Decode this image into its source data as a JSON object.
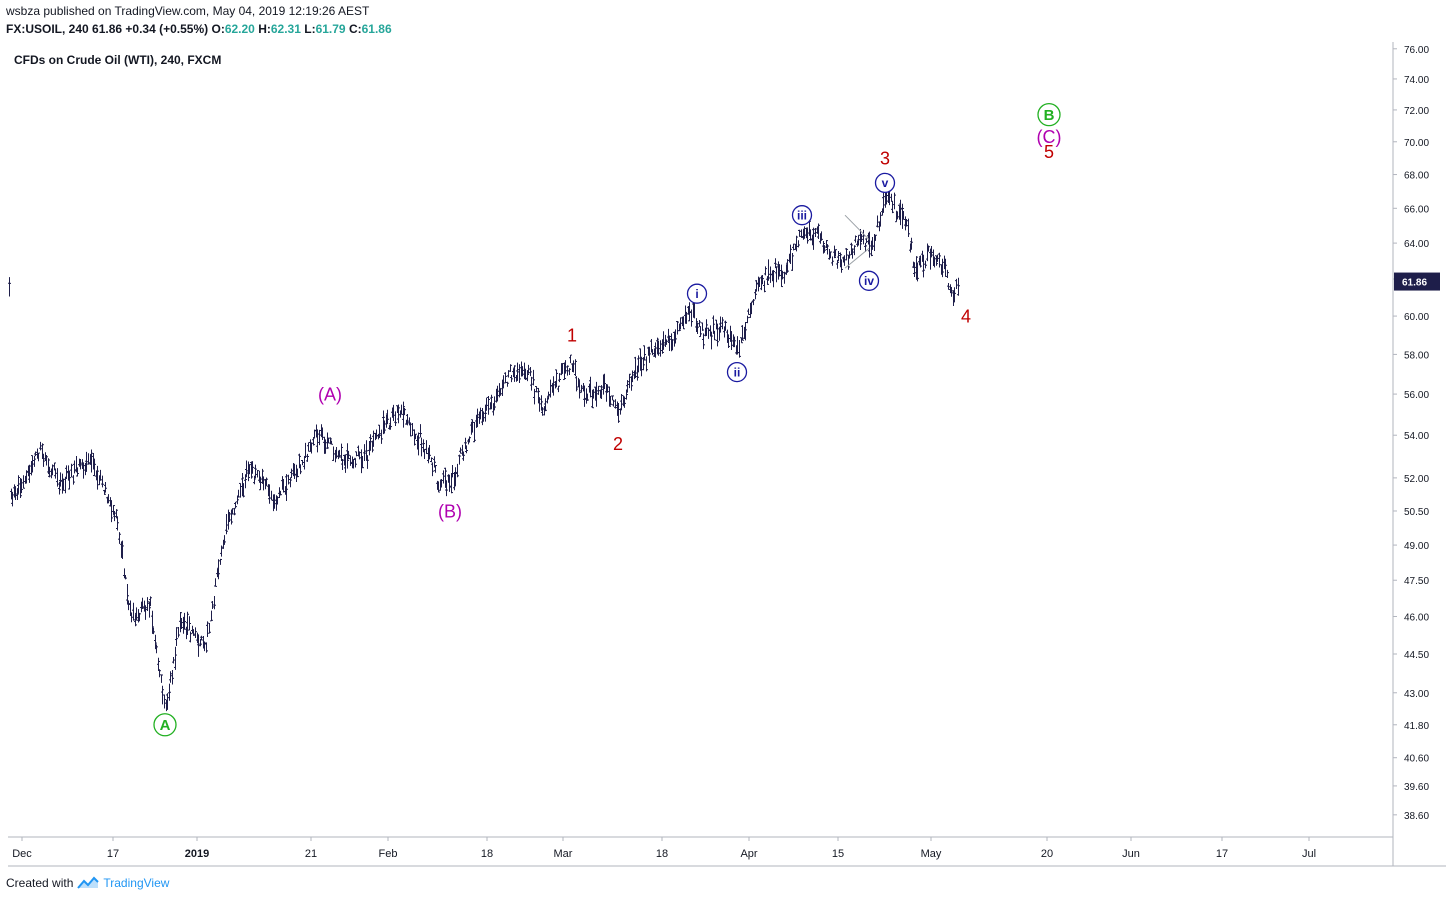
{
  "header": {
    "line1": "wsbza published on TradingView.com, May 04, 2019 12:19:26 AEST",
    "symbol": "FX:USOIL, 240",
    "last": "61.86",
    "change": "+0.34 (+0.55%)",
    "o_label": "O:",
    "o_val": "62.20",
    "h_label": "H:",
    "h_val": "62.31",
    "l_label": "L:",
    "l_val": "61.79",
    "c_label": "C:",
    "c_val": "61.86"
  },
  "footer": {
    "created_with": "Created with",
    "brand": "TradingView"
  },
  "colors": {
    "candle": "#1e1e4a",
    "wave_red": "#c00000",
    "wave_purple": "#b000b0",
    "wave_green": "#22b022",
    "wave_blue": "#1a1aa0",
    "price_tag_bg": "#1e1e4a"
  },
  "chart_data": {
    "type": "line",
    "subtype": "ohlc-bars",
    "title": "CFDs on Crude Oil (WTI), 240, FXCM",
    "y_axis_labels": [
      "76.00",
      "74.00",
      "72.00",
      "70.00",
      "68.00",
      "66.00",
      "64.00",
      "62.00",
      "60.00",
      "58.00",
      "56.00",
      "54.00",
      "52.00",
      "50.50",
      "49.00",
      "47.50",
      "46.00",
      "44.50",
      "43.00",
      "41.80",
      "40.60",
      "39.60",
      "38.60"
    ],
    "x_axis_labels": [
      "Dec",
      "17",
      "2019",
      "21",
      "Feb",
      "18",
      "Mar",
      "18",
      "Apr",
      "15",
      "May",
      "20",
      "Jun",
      "17",
      "Jul"
    ],
    "last_price": "61.86",
    "grid": false,
    "y_scale": "log",
    "series": [
      {
        "x": [
          "Dec",
          "17",
          "2019",
          "21",
          "Feb",
          "18",
          "Mar",
          "18",
          "Apr",
          "15",
          "May"
        ],
        "values": [
          51.0,
          50.5,
          44.0,
          53.5,
          54.0,
          56.5,
          57.0,
          60.0,
          63.5,
          66.0,
          62.0
        ]
      }
    ],
    "key_points": [
      {
        "label": "A",
        "x": "Dec 24",
        "price": 42.3
      },
      {
        "label": "(A)",
        "x": "Jan 18",
        "price": 54.8
      },
      {
        "label": "(B)",
        "x": "Feb 11",
        "price": 51.6
      },
      {
        "label": "1",
        "x": "Mar 1",
        "price": 57.9
      },
      {
        "label": "2",
        "x": "Mar 8",
        "price": 54.6
      },
      {
        "label": "i",
        "x": "Mar 21",
        "price": 60.4
      },
      {
        "label": "ii",
        "x": "Mar 29",
        "price": 58.1
      },
      {
        "label": "iii",
        "x": "Apr 10",
        "price": 64.8
      },
      {
        "label": "iv",
        "x": "Apr 17",
        "price": 62.9
      },
      {
        "label": "v",
        "x": "Apr 23",
        "price": 66.6
      },
      {
        "label": "3",
        "x": "Apr 23",
        "price": 66.6
      },
      {
        "label": "4",
        "x": "May 3",
        "price": 61.0
      }
    ],
    "wave_labels": [
      {
        "text": "A",
        "style": "green-circle",
        "date": "Dec 24",
        "price": 41.8
      },
      {
        "text": "(A)",
        "style": "purple",
        "date": "Jan 17",
        "price": 56.0
      },
      {
        "text": "(B)",
        "style": "purple",
        "date": "Feb 11",
        "price": 50.5
      },
      {
        "text": "1",
        "style": "red",
        "date": "Mar 1",
        "price": 59.0
      },
      {
        "text": "2",
        "style": "red",
        "date": "Mar 8",
        "price": 53.6
      },
      {
        "text": "i",
        "style": "blue-circle",
        "date": "Mar 21",
        "price": 61.2
      },
      {
        "text": "ii",
        "style": "blue-circle",
        "date": "Mar 29",
        "price": 57.1
      },
      {
        "text": "iii",
        "style": "blue-circle",
        "date": "Apr 10",
        "price": 65.6
      },
      {
        "text": "iv",
        "style": "blue-circle",
        "date": "Apr 17",
        "price": 61.9
      },
      {
        "text": "v",
        "style": "blue-circle",
        "date": "Apr 23",
        "price": 67.5
      },
      {
        "text": "3",
        "style": "red",
        "date": "Apr 23",
        "price": 69.0
      },
      {
        "text": "4",
        "style": "red",
        "date": "May 5",
        "price": 60.0
      },
      {
        "text": "B",
        "style": "green-circle",
        "date": "May 20",
        "price": 71.7
      },
      {
        "text": "(C)",
        "style": "purple",
        "date": "May 20",
        "price": 70.3
      },
      {
        "text": "5",
        "style": "red",
        "date": "May 20",
        "price": 69.4
      }
    ]
  }
}
